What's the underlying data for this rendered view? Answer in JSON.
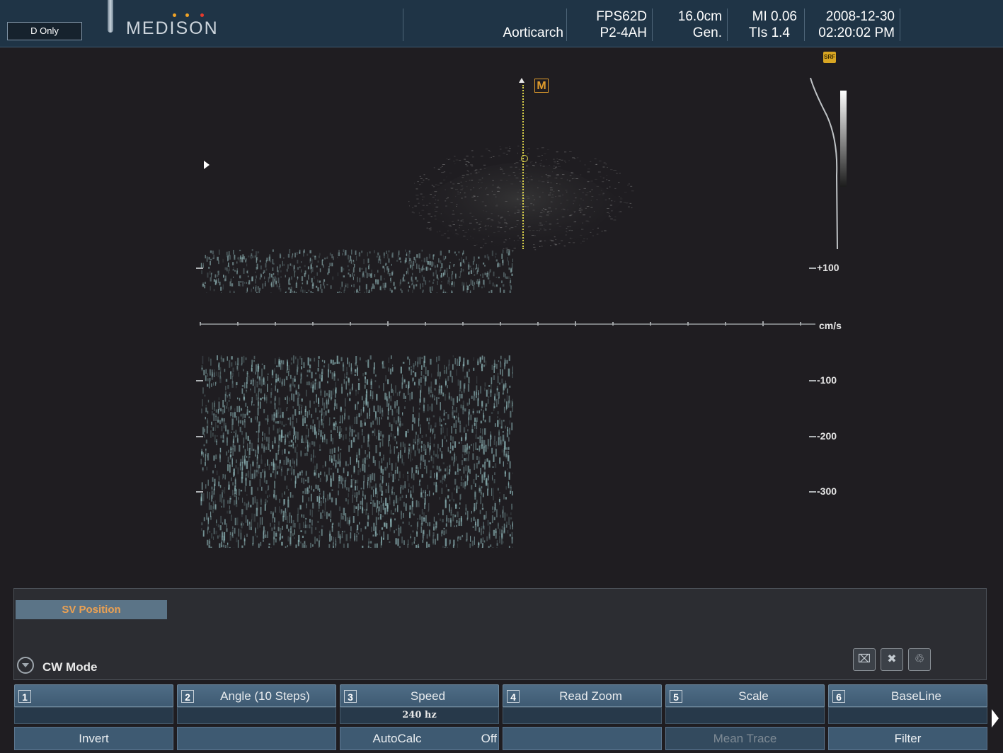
{
  "header": {
    "mode": "D Only",
    "brand": "MEDISON",
    "brand_dot_colors": [
      "#f0a326",
      "#f0a326",
      "#e63a2c"
    ],
    "preset": "Aorticarch",
    "probe": "FPS62D",
    "probe_app": "P2-4AH",
    "depth": "16.0cm",
    "frequency": "Gen.",
    "mi": "MI 0.06",
    "tis": "TIs 1.4",
    "date": "2008-12-30",
    "time": "02:20:02 PM"
  },
  "image": {
    "m_marker": "M",
    "srf_badge": "SRF",
    "scale_unit": "cm/s",
    "scale_labels": [
      "+100",
      "-100",
      "-200",
      "-300"
    ]
  },
  "panel": {
    "sv_position": "SV Position",
    "mode_title": "CW Mode"
  },
  "softkeys": [
    {
      "num": "1",
      "label": "",
      "value": ""
    },
    {
      "num": "2",
      "label": "Angle (10 Steps)",
      "value": ""
    },
    {
      "num": "3",
      "label": "Speed",
      "value": "240 hz"
    },
    {
      "num": "4",
      "label": "Read Zoom",
      "value": ""
    },
    {
      "num": "5",
      "label": "Scale",
      "value": ""
    },
    {
      "num": "6",
      "label": "BaseLine",
      "value": ""
    }
  ],
  "bottom_keys": [
    {
      "label": "Invert",
      "state": "",
      "enabled": true
    },
    {
      "label": "",
      "state": "",
      "enabled": true
    },
    {
      "label": "AutoCalc",
      "state": "Off",
      "enabled": true
    },
    {
      "label": "",
      "state": "",
      "enabled": true
    },
    {
      "label": "Mean Trace",
      "state": "",
      "enabled": false
    },
    {
      "label": "Filter",
      "state": "",
      "enabled": true
    }
  ],
  "icons": {
    "tool1": "network-delete-icon",
    "tool2": "patient-delete-icon",
    "tool3": "trash-icon"
  }
}
